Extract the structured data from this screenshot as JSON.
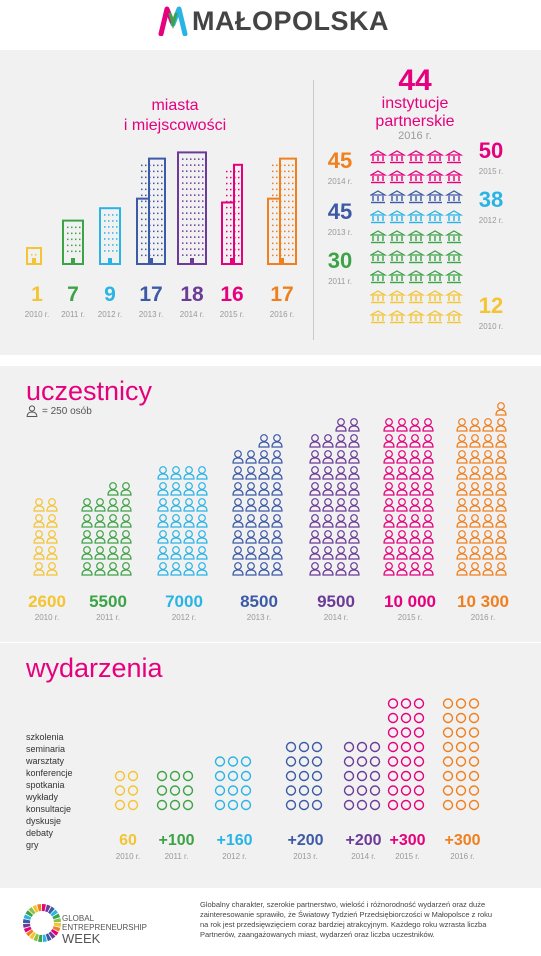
{
  "brand": {
    "name": "MAŁOPOLSKA",
    "colors": {
      "pink": "#e6007e",
      "yellow": "#f3c433",
      "green": "#3ca346",
      "cyan": "#2ab4e6",
      "navy": "#3c5aa6",
      "purple": "#6b3b97",
      "magenta": "#e6007e",
      "orange": "#f07f1e"
    }
  },
  "cities": {
    "title_l1": "miasta",
    "title_l2": "i miejscowości",
    "items": [
      {
        "value": "1",
        "year": "2010 r.",
        "color": "#f3c433"
      },
      {
        "value": "7",
        "year": "2011 r.",
        "color": "#3ca346"
      },
      {
        "value": "9",
        "year": "2012 r.",
        "color": "#2ab4e6"
      },
      {
        "value": "17",
        "year": "2013 r.",
        "color": "#3c5aa6"
      },
      {
        "value": "18",
        "year": "2014 r.",
        "color": "#6b3b97"
      },
      {
        "value": "16",
        "year": "2015 r.",
        "color": "#e6007e"
      },
      {
        "value": "17",
        "year": "2016 r.",
        "color": "#f07f1e"
      }
    ]
  },
  "institutions": {
    "value": "44",
    "label_l1": "instytucje",
    "label_l2": "partnerskie",
    "year": "2016 r.",
    "left": [
      {
        "value": "45",
        "year": "2014 r.",
        "color": "#f07f1e"
      },
      {
        "value": "45",
        "year": "2013 r.",
        "color": "#3c5aa6"
      },
      {
        "value": "30",
        "year": "2011 r.",
        "color": "#3ca346"
      }
    ],
    "right": [
      {
        "value": "50",
        "year": "2015 r.",
        "color": "#e6007e"
      },
      {
        "value": "38",
        "year": "2012 r.",
        "color": "#2ab4e6"
      },
      {
        "value": "12",
        "year": "2010 r.",
        "color": "#f3c433"
      }
    ]
  },
  "participants": {
    "title": "uczestnicy",
    "legend": "= 250 osób",
    "items": [
      {
        "value": "2600",
        "year": "2010 r.",
        "color": "#f3c433"
      },
      {
        "value": "5500",
        "year": "2011 r.",
        "color": "#3ca346"
      },
      {
        "value": "7000",
        "year": "2012 r.",
        "color": "#2ab4e6"
      },
      {
        "value": "8500",
        "year": "2013 r.",
        "color": "#3c5aa6"
      },
      {
        "value": "9500",
        "year": "2014 r.",
        "color": "#6b3b97"
      },
      {
        "value": "10 000",
        "year": "2015 r.",
        "color": "#e6007e"
      },
      {
        "value": "10 300",
        "year": "2016 r.",
        "color": "#f07f1e"
      }
    ]
  },
  "events": {
    "title": "wydarzenia",
    "labels": [
      "szkolenia",
      "seminaria",
      "warsztaty",
      "konferencje",
      "spotkania",
      "wykłady",
      "konsultacje",
      "dyskusje",
      "debaty",
      "gry"
    ],
    "items": [
      {
        "value": "60",
        "year": "2010 r.",
        "color": "#f3c433"
      },
      {
        "value": "+100",
        "year": "2011 r.",
        "color": "#3ca346"
      },
      {
        "value": "+160",
        "year": "2012 r.",
        "color": "#2ab4e6"
      },
      {
        "value": "+200",
        "year": "2013 r.",
        "color": "#3c5aa6"
      },
      {
        "value": "+200",
        "year": "2014 r.",
        "color": "#6b3b97"
      },
      {
        "value": "+300",
        "year": "2015 r.",
        "color": "#e6007e"
      },
      {
        "value": "+300",
        "year": "2016 r.",
        "color": "#f07f1e"
      }
    ]
  },
  "footer": {
    "gew_l1": "GLOBAL",
    "gew_l2": "ENTREPRENEURSHIP",
    "gew_l3": "WEEK",
    "text": "Globalny charakter, szerokie partnerstwo, wielość i różnorodność wydarzeń oraz duże zainteresowanie sprawiło, że Światowy Tydzień Przedsiębiorczości w Małopolsce z roku na rok jest przedsięwzięciem coraz bardziej atrakcyjnym. Każdego roku wzrasta liczba Partnerów, zaangażowanych miast, wydarzeń oraz liczba uczestników."
  }
}
